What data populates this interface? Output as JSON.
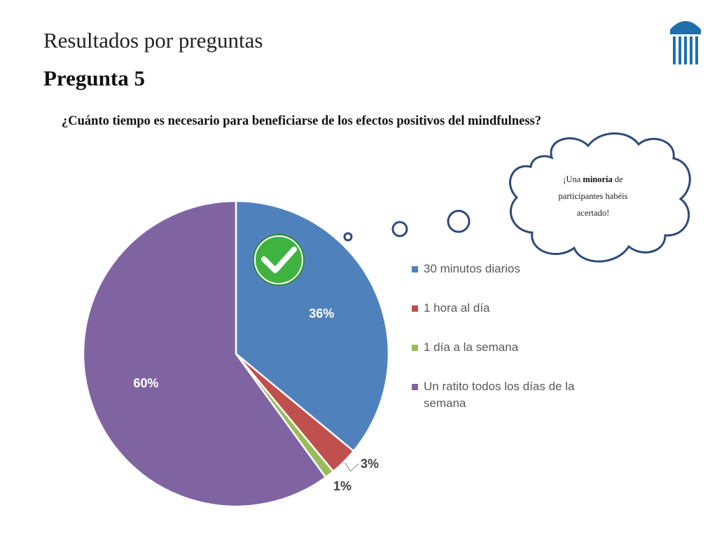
{
  "slide": {
    "title": "Resultados por preguntas",
    "subtitle": "Pregunta 5",
    "question": "¿Cuánto tiempo es necesario para beneficiarse de los efectos positivos del mindfulness?"
  },
  "callout": {
    "prefix": "¡Una ",
    "emphasis": "minoría",
    "suffix": " de participantes habéis acertado!"
  },
  "icons": {
    "correct_answer": "check-mark-icon",
    "logo": "columns-logo-icon"
  },
  "chart_data": {
    "type": "pie",
    "title": "",
    "categories": [
      "30 minutos diarios",
      "1 hora al día",
      "1 día a la semana",
      "Un ratito todos los días de la semana"
    ],
    "values": [
      36,
      3,
      1,
      60
    ],
    "labels": [
      "36%",
      "3%",
      "1%",
      "60%"
    ],
    "colors": [
      "#4F81BD",
      "#C0504D",
      "#9BBB59",
      "#8064A2"
    ],
    "legend": "right",
    "correct_category": "30 minutos diarios"
  }
}
